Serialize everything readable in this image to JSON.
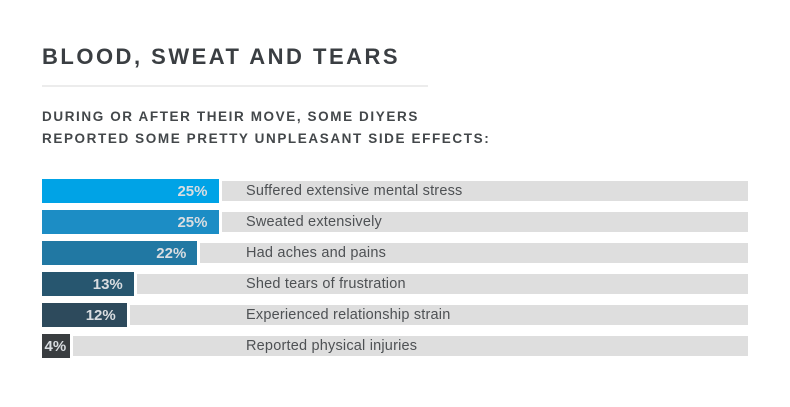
{
  "header": {
    "title": "BLOOD, SWEAT AND TEARS",
    "subtitle_line1": "DURING OR AFTER THEIR MOVE, SOME DIYERS",
    "subtitle_line2": "REPORTED SOME PRETTY UNPLEASANT SIDE EFFECTS:"
  },
  "chart_data": {
    "type": "bar",
    "orientation": "horizontal",
    "title": "BLOOD, SWEAT AND TEARS",
    "subtitle": "DURING OR AFTER THEIR MOVE, SOME DIYERS REPORTED SOME PRETTY UNPLEASANT SIDE EFFECTS:",
    "categories": [
      "Suffered extensive mental stress",
      "Sweated extensively",
      "Had aches and pains",
      "Shed tears of frustration",
      "Experienced relationship strain",
      "Reported physical injuries"
    ],
    "values": [
      25,
      25,
      22,
      13,
      12,
      4
    ],
    "value_labels": [
      "25%",
      "25%",
      "22%",
      "13%",
      "12%",
      "4%"
    ],
    "bar_colors": [
      "#00a3e6",
      "#1c8dc5",
      "#2178a3",
      "#27566f",
      "#2d4a5c",
      "#393d40"
    ],
    "track_color": "#dedede",
    "value_text_color": "#d9dde1",
    "category_text_color": "#4e5154",
    "xlim": [
      0,
      100
    ],
    "grid": false,
    "legend": false,
    "xlabel": "",
    "ylabel": ""
  }
}
